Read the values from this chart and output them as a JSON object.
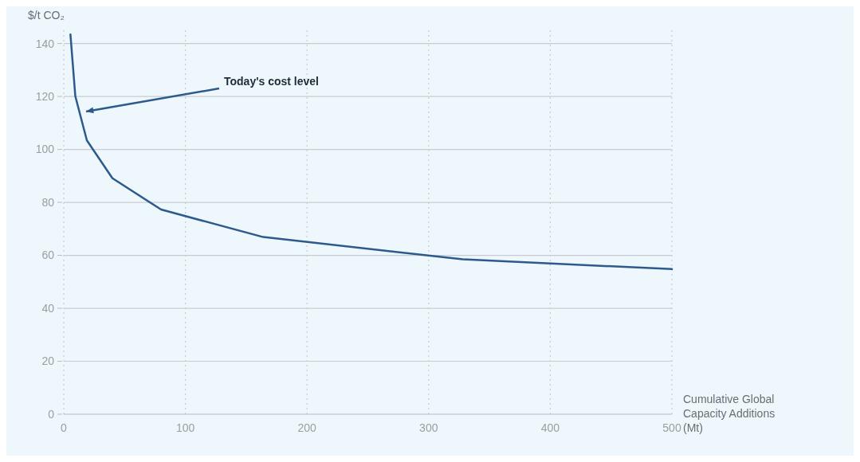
{
  "chart_data": {
    "type": "line",
    "ylabel": "$/t CO₂",
    "xlabel": "Cumulative Global Capacity Additions (Mt)",
    "x": [
      5.5,
      9.5,
      19,
      40,
      80,
      164,
      328,
      500
    ],
    "series": [
      {
        "color": "#2d5a8c",
        "values": [
          143.4,
          120.1,
          103.4,
          89.1,
          77.3,
          66.9,
          58.5,
          54.8
        ]
      }
    ],
    "xlim": [
      0,
      500
    ],
    "xticks": [
      0,
      100,
      200,
      300,
      400,
      500
    ],
    "ylim": [
      0,
      145
    ],
    "yticks": [
      0,
      20,
      40,
      60,
      80,
      100,
      120,
      140
    ],
    "grid": true,
    "marker": "none",
    "line_style": "solid",
    "annotations": [
      "Today's cost level"
    ]
  }
}
